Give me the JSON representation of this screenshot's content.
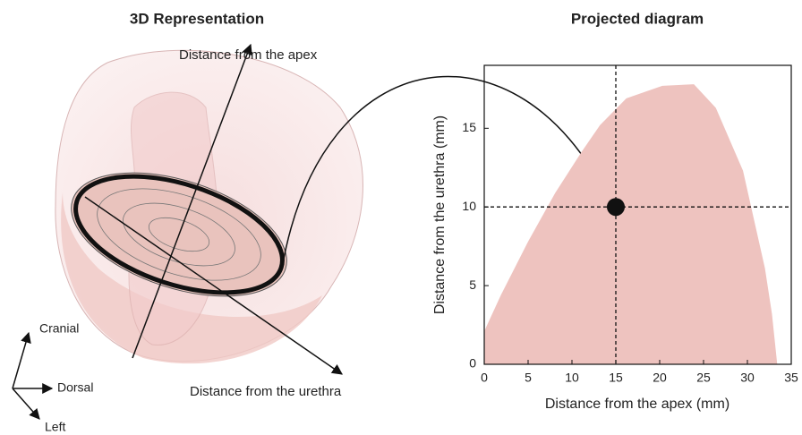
{
  "illustration": {
    "title": "3D Representation",
    "axis_apex": "Distance from the apex",
    "axis_urethra": "Distance from the urethra",
    "dir_cranial": "Cranial",
    "dir_dorsal": "Dorsal",
    "dir_left": "Left"
  },
  "chart_data": {
    "type": "area",
    "title": "Projected diagram",
    "x_label": "Distance from the apex (mm)",
    "y_label": "Distance from the urethra (mm)",
    "xlim": [
      0,
      35
    ],
    "ylim": [
      0,
      19
    ],
    "xticks": [
      0,
      5,
      10,
      15,
      20,
      25,
      30,
      35
    ],
    "yticks": [
      0,
      5,
      10,
      15
    ],
    "region": {
      "color": "#eec3bf",
      "x": [
        0,
        0,
        1.9,
        5,
        8.1,
        11.1,
        13.2,
        16.2,
        20.3,
        23.9,
        26.4,
        29.5,
        32,
        32.8,
        33.4
      ],
      "y": [
        0,
        2.1,
        4.4,
        7.8,
        10.9,
        13.5,
        15.2,
        16.9,
        17.7,
        17.8,
        16.3,
        12.3,
        6.1,
        3.2,
        0
      ]
    },
    "point": {
      "x": 15,
      "y": 10,
      "color": "#111111"
    }
  }
}
